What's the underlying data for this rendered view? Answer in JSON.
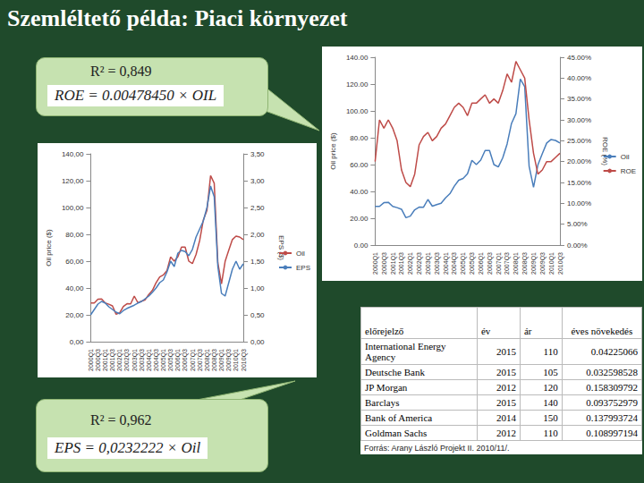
{
  "title": "Szemléltető példa: Piaci környezet",
  "callouts": [
    {
      "r2": "R² = 0,849",
      "formula": "ROE = 0.00478450 × OIL"
    },
    {
      "r2": "R² = 0,962",
      "formula": "EPS = 0,0232222 × Oil"
    }
  ],
  "chart_data": [
    {
      "type": "line",
      "categories": [
        "2000Q1",
        null,
        "2000Q3",
        null,
        "2001Q1",
        null,
        "2001Q3",
        null,
        "2002Q1",
        null,
        "2002Q3",
        null,
        "2003Q1",
        null,
        "2003Q3",
        null,
        "2004Q1",
        null,
        "2004Q3",
        null,
        "2005Q1",
        null,
        "2005Q3",
        null,
        "2006Q1",
        null,
        "2006Q3",
        null,
        "2007Q1",
        null,
        "2007Q3",
        null,
        "2008Q1",
        null,
        "2008Q3",
        null,
        "2009Q1",
        null,
        "2009Q3",
        null,
        "2010Q1",
        null,
        "2010Q3"
      ],
      "series": [
        {
          "name": "Oil",
          "color": "#4a7ebb",
          "marker": "none",
          "values": [
            28.8,
            28.8,
            31.6,
            31.9,
            28.8,
            27.9,
            26.7,
            20.4,
            21.6,
            26.3,
            28.3,
            28.2,
            34.0,
            29.0,
            30.2,
            31.2,
            35.2,
            38.3,
            43.9,
            48.3,
            49.7,
            53.1,
            63.2,
            60.0,
            63.3,
            70.5,
            70.5,
            60.0,
            58.2,
            65.0,
            75.4,
            90.7,
            97.9,
            123.8,
            118.1,
            58.7,
            43.1,
            59.8,
            68.2,
            76.1,
            78.7,
            78.0,
            76.1
          ]
        },
        {
          "name": "ROE",
          "color": "#be4b48",
          "marker": "none",
          "axis": "y2",
          "values": [
            20,
            30,
            28,
            30,
            28,
            25,
            18,
            15,
            14,
            17,
            24,
            26,
            27,
            25,
            26,
            28,
            29,
            31,
            33,
            34,
            33,
            31,
            34,
            34,
            35,
            36,
            34,
            35,
            34,
            37,
            41,
            39,
            44,
            42,
            40,
            30,
            22,
            17,
            18,
            20,
            20,
            21,
            22
          ]
        }
      ],
      "ylabel": "Oil price ($)",
      "y2label": "ROE (%)",
      "ylim": [
        0,
        140
      ],
      "yticks": [
        {
          "value": 0,
          "label": "0.00"
        },
        {
          "value": 20,
          "label": "20.00"
        },
        {
          "value": 40,
          "label": "40.00"
        },
        {
          "value": 60,
          "label": "60.00"
        },
        {
          "value": 80,
          "label": "80.00"
        },
        {
          "value": 100,
          "label": "100.00"
        },
        {
          "value": 120,
          "label": "120.00"
        },
        {
          "value": 140,
          "label": "140.00"
        }
      ],
      "y2lim": [
        0,
        45
      ],
      "y2ticks": [
        {
          "value": 0,
          "label": "0.00%"
        },
        {
          "value": 5,
          "label": "5.00%"
        },
        {
          "value": 10,
          "label": "10.00%"
        },
        {
          "value": 15,
          "label": "15.00%"
        },
        {
          "value": 20,
          "label": "20.00%"
        },
        {
          "value": 25,
          "label": "25.00%"
        },
        {
          "value": 30,
          "label": "30.00%"
        },
        {
          "value": 35,
          "label": "35.00%"
        },
        {
          "value": 40,
          "label": "40.00%"
        },
        {
          "value": 45,
          "label": "45.00%"
        }
      ],
      "grid": false,
      "legend": "right"
    },
    {
      "type": "line",
      "categories": [
        "2000Q1",
        null,
        "2000Q3",
        null,
        "2001Q1",
        null,
        "2001Q3",
        null,
        "2002Q1",
        null,
        "2002Q3",
        null,
        "2003Q1",
        null,
        "2003Q3",
        null,
        "2004Q1",
        null,
        "2004Q3",
        null,
        "2005Q1",
        null,
        "2005Q3",
        null,
        "2006Q1",
        null,
        "2006Q3",
        null,
        "2007Q1",
        null,
        "2007Q3",
        null,
        "2008Q1",
        null,
        "2008Q3",
        null,
        "2009Q1",
        null,
        "2009Q3",
        null,
        "2010Q1",
        null,
        "2010Q3"
      ],
      "series": [
        {
          "name": "Oil",
          "color": "#be4b48",
          "marker": "none",
          "values": [
            28.8,
            28.8,
            31.6,
            31.9,
            28.8,
            27.9,
            26.7,
            20.4,
            21.6,
            26.3,
            28.3,
            28.2,
            34.0,
            29.0,
            30.2,
            31.2,
            35.2,
            38.3,
            43.9,
            48.3,
            49.7,
            53.1,
            63.2,
            60.0,
            63.3,
            70.5,
            70.5,
            60.0,
            58.2,
            65.0,
            75.4,
            90.7,
            97.9,
            123.8,
            118.1,
            58.7,
            43.1,
            59.8,
            68.2,
            76.1,
            78.7,
            78.0,
            76.1
          ]
        },
        {
          "name": "EPS",
          "color": "#4a7ebb",
          "marker": "none",
          "axis": "y2",
          "values": [
            0.5,
            0.6,
            0.7,
            0.75,
            0.72,
            0.65,
            0.6,
            0.55,
            0.52,
            0.58,
            0.62,
            0.65,
            0.68,
            0.72,
            0.75,
            0.8,
            0.85,
            0.92,
            1.0,
            1.1,
            1.15,
            1.3,
            1.5,
            1.4,
            1.65,
            1.7,
            1.68,
            1.6,
            1.72,
            1.95,
            2.1,
            2.25,
            2.5,
            2.9,
            2.7,
            1.4,
            0.9,
            0.85,
            1.1,
            1.35,
            1.5,
            1.35,
            1.45
          ]
        }
      ],
      "ylabel": "Oil price ($)",
      "y2label": "EPS ($)",
      "ylim": [
        0,
        140
      ],
      "yticks": [
        {
          "value": 0,
          "label": "0,00"
        },
        {
          "value": 20,
          "label": "20,00"
        },
        {
          "value": 40,
          "label": "40,00"
        },
        {
          "value": 60,
          "label": "60,00"
        },
        {
          "value": 80,
          "label": "80,00"
        },
        {
          "value": 100,
          "label": "100,00"
        },
        {
          "value": 120,
          "label": "120,00"
        },
        {
          "value": 140,
          "label": "140,00"
        }
      ],
      "y2lim": [
        0,
        3.5
      ],
      "y2ticks": [
        {
          "value": 0,
          "label": "0,00"
        },
        {
          "value": 0.5,
          "label": "0,50"
        },
        {
          "value": 1,
          "label": "1,00"
        },
        {
          "value": 1.5,
          "label": "1,50"
        },
        {
          "value": 2,
          "label": "2,00"
        },
        {
          "value": 2.5,
          "label": "2,50"
        },
        {
          "value": 3,
          "label": "3,00"
        },
        {
          "value": 3.5,
          "label": "3,50"
        }
      ],
      "grid": false,
      "legend": "right"
    }
  ],
  "table": {
    "header": [
      "előrejelző",
      "év",
      "ár",
      "éves növekedés"
    ],
    "rows": [
      [
        "International Energy Agency",
        "2015",
        "110",
        "0.04225066"
      ],
      [
        "Deutsche Bank",
        "2015",
        "105",
        "0.032598528"
      ],
      [
        "JP Morgan",
        "2012",
        "120",
        "0.158309792"
      ],
      [
        "Barclays",
        "2015",
        "140",
        "0.093752979"
      ],
      [
        "Bank of America",
        "2014",
        "150",
        "0.137993724"
      ],
      [
        "Goldman Sachs",
        "2012",
        "110",
        "0.108997194"
      ]
    ]
  },
  "source": "Forrás:  Arany László Projekt II. 2010/11/."
}
